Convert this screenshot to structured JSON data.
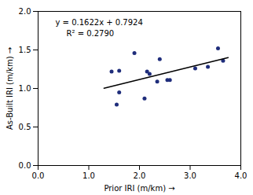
{
  "chart_data": {
    "type": "scatter",
    "xlabel": "Prior IRI (m/km)",
    "ylabel": "As-Built IRI (m/km)",
    "annotations": [
      "y = 0.1622x + 0.7924",
      "R² = 0.2790"
    ],
    "series": [
      {
        "type": "scatter",
        "color": "#1F2D7B",
        "x": [
          1.45,
          1.55,
          1.6,
          1.6,
          1.9,
          2.1,
          2.15,
          2.2,
          2.35,
          2.4,
          2.55,
          2.6,
          3.1,
          3.35,
          3.55,
          3.65
        ],
        "values": [
          1.22,
          0.79,
          0.95,
          1.23,
          1.46,
          0.87,
          1.22,
          1.19,
          1.09,
          1.38,
          1.11,
          1.11,
          1.26,
          1.28,
          1.52,
          1.36
        ]
      },
      {
        "type": "line",
        "color": "#000000",
        "x": [
          1.3,
          3.75
        ],
        "values": [
          1.00326,
          1.40065
        ]
      }
    ],
    "xlim": [
      0.0,
      4.0
    ],
    "ylim": [
      0.0,
      2.0
    ],
    "xticks": [
      {
        "value": 0,
        "label": "0.0"
      },
      {
        "value": 1,
        "label": "1.0"
      },
      {
        "value": 2,
        "label": "2.0"
      },
      {
        "value": 3,
        "label": "3.0"
      },
      {
        "value": 4,
        "label": "4.0"
      }
    ],
    "yticks": [
      {
        "value": 0,
        "label": "0.0"
      },
      {
        "value": 0.5,
        "label": "0.5"
      },
      {
        "value": 1,
        "label": "1.0"
      },
      {
        "value": 1.5,
        "label": "1.5"
      },
      {
        "value": 2,
        "label": "2.0"
      }
    ],
    "grid": false
  }
}
